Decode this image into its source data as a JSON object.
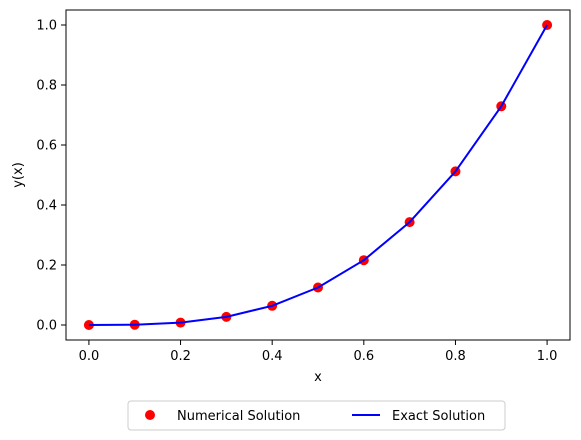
{
  "chart_data": {
    "type": "line",
    "xlabel": "x",
    "ylabel": "y(x)",
    "xlim": [
      -0.05,
      1.05
    ],
    "ylim": [
      -0.05,
      1.05
    ],
    "xticks": [
      "0.0",
      "0.2",
      "0.4",
      "0.6",
      "0.8",
      "1.0"
    ],
    "yticks": [
      "0.0",
      "0.2",
      "0.4",
      "0.6",
      "0.8",
      "1.0"
    ],
    "grid": false,
    "legend_position": "bottom-center",
    "series": [
      {
        "name": "Numerical Solution",
        "kind": "scatter",
        "color": "#ff0000",
        "x": [
          0.0,
          0.1,
          0.2,
          0.3,
          0.4,
          0.5,
          0.6,
          0.7,
          0.8,
          0.9,
          1.0
        ],
        "y": [
          0.0,
          0.001,
          0.008,
          0.027,
          0.064,
          0.125,
          0.216,
          0.343,
          0.512,
          0.729,
          1.0
        ]
      },
      {
        "name": "Exact Solution",
        "kind": "line",
        "color": "#0000ff",
        "x": [
          0.0,
          0.1,
          0.2,
          0.3,
          0.4,
          0.5,
          0.6,
          0.7,
          0.8,
          0.9,
          1.0
        ],
        "y": [
          0.0,
          0.001,
          0.008,
          0.027,
          0.064,
          0.125,
          0.216,
          0.343,
          0.512,
          0.729,
          1.0
        ]
      }
    ]
  }
}
